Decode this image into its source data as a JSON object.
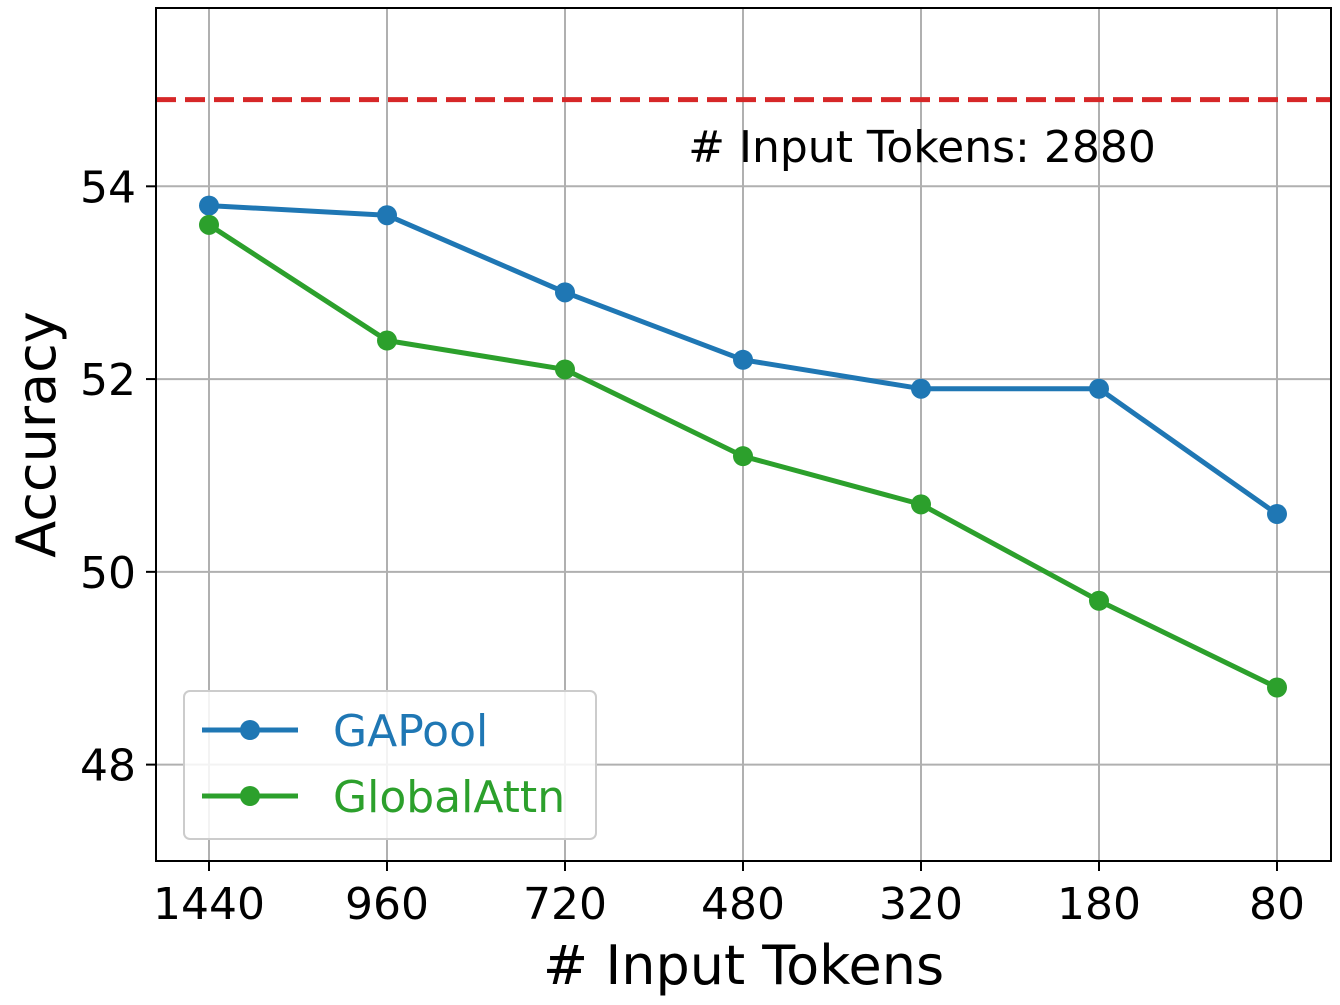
{
  "chart_data": {
    "type": "line",
    "title": "",
    "xlabel": "# Input Tokens",
    "ylabel": "Accuracy",
    "categories": [
      "1440",
      "960",
      "720",
      "480",
      "320",
      "180",
      "80"
    ],
    "ylim": [
      47.0,
      55.85
    ],
    "yticks": [
      48,
      50,
      52,
      54
    ],
    "grid": true,
    "legend_position": "lower-left",
    "series": [
      {
        "name": "GAPool",
        "color": "#1f77b4",
        "values": [
          53.8,
          53.7,
          52.9,
          52.2,
          51.9,
          51.9,
          50.6
        ]
      },
      {
        "name": "GlobalAttn",
        "color": "#2ca02c",
        "values": [
          53.6,
          52.4,
          52.1,
          51.2,
          50.7,
          49.7,
          48.8
        ]
      }
    ],
    "reference_line": {
      "value": 54.9,
      "color": "#d62728",
      "style": "dashed",
      "label": "# Input Tokens: 2880"
    }
  }
}
